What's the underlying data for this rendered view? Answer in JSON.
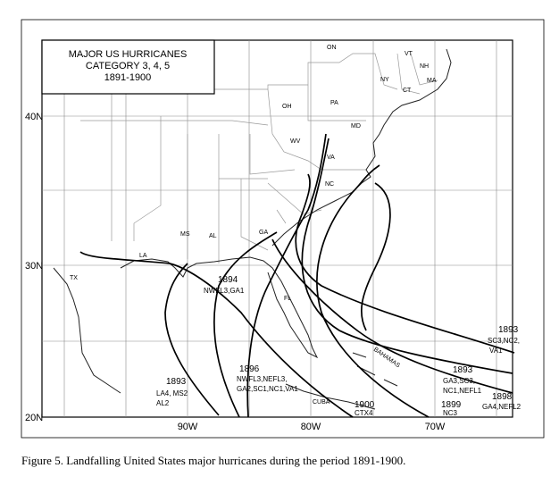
{
  "title": {
    "line1": "MAJOR US HURRICANES",
    "line2": "CATEGORY 3, 4, 5",
    "line3": "1891-1900"
  },
  "latitude_labels": [
    "40N",
    "30N",
    "20N"
  ],
  "longitude_labels": [
    "90W",
    "80W",
    "70W"
  ],
  "place_labels": [
    "ON",
    "VT",
    "NH",
    "MA",
    "CT",
    "NY",
    "OH",
    "PA",
    "MD",
    "WV",
    "VA",
    "NC",
    "GA",
    "MS",
    "AL",
    "LA",
    "TX",
    "FL",
    "CUBA",
    "BAHAMAS"
  ],
  "storms": [
    {
      "year": "1893",
      "impacts": [
        "SC3,NC2,",
        "VA1"
      ]
    },
    {
      "year": "1893",
      "impacts": [
        "GA3,SC3,",
        "NC1,NEFL1"
      ]
    },
    {
      "year": "1898",
      "impacts": [
        "GA4,NEFL2"
      ]
    },
    {
      "year": "1899",
      "impacts": [
        "NC3"
      ]
    },
    {
      "year": "1900",
      "impacts": [
        "CTX4"
      ]
    },
    {
      "year": "1896",
      "impacts": [
        "NWFL3,NEFL3,",
        "GA2,SC1,NC1,VA1"
      ]
    },
    {
      "year": "1893",
      "impacts": [
        "LA4, MS2",
        "AL2"
      ]
    },
    {
      "year": "1894",
      "impacts": [
        "NWFL3,GA1"
      ]
    }
  ],
  "caption": "Figure 5.  Landfalling United States major hurricanes during the period 1891-1900."
}
